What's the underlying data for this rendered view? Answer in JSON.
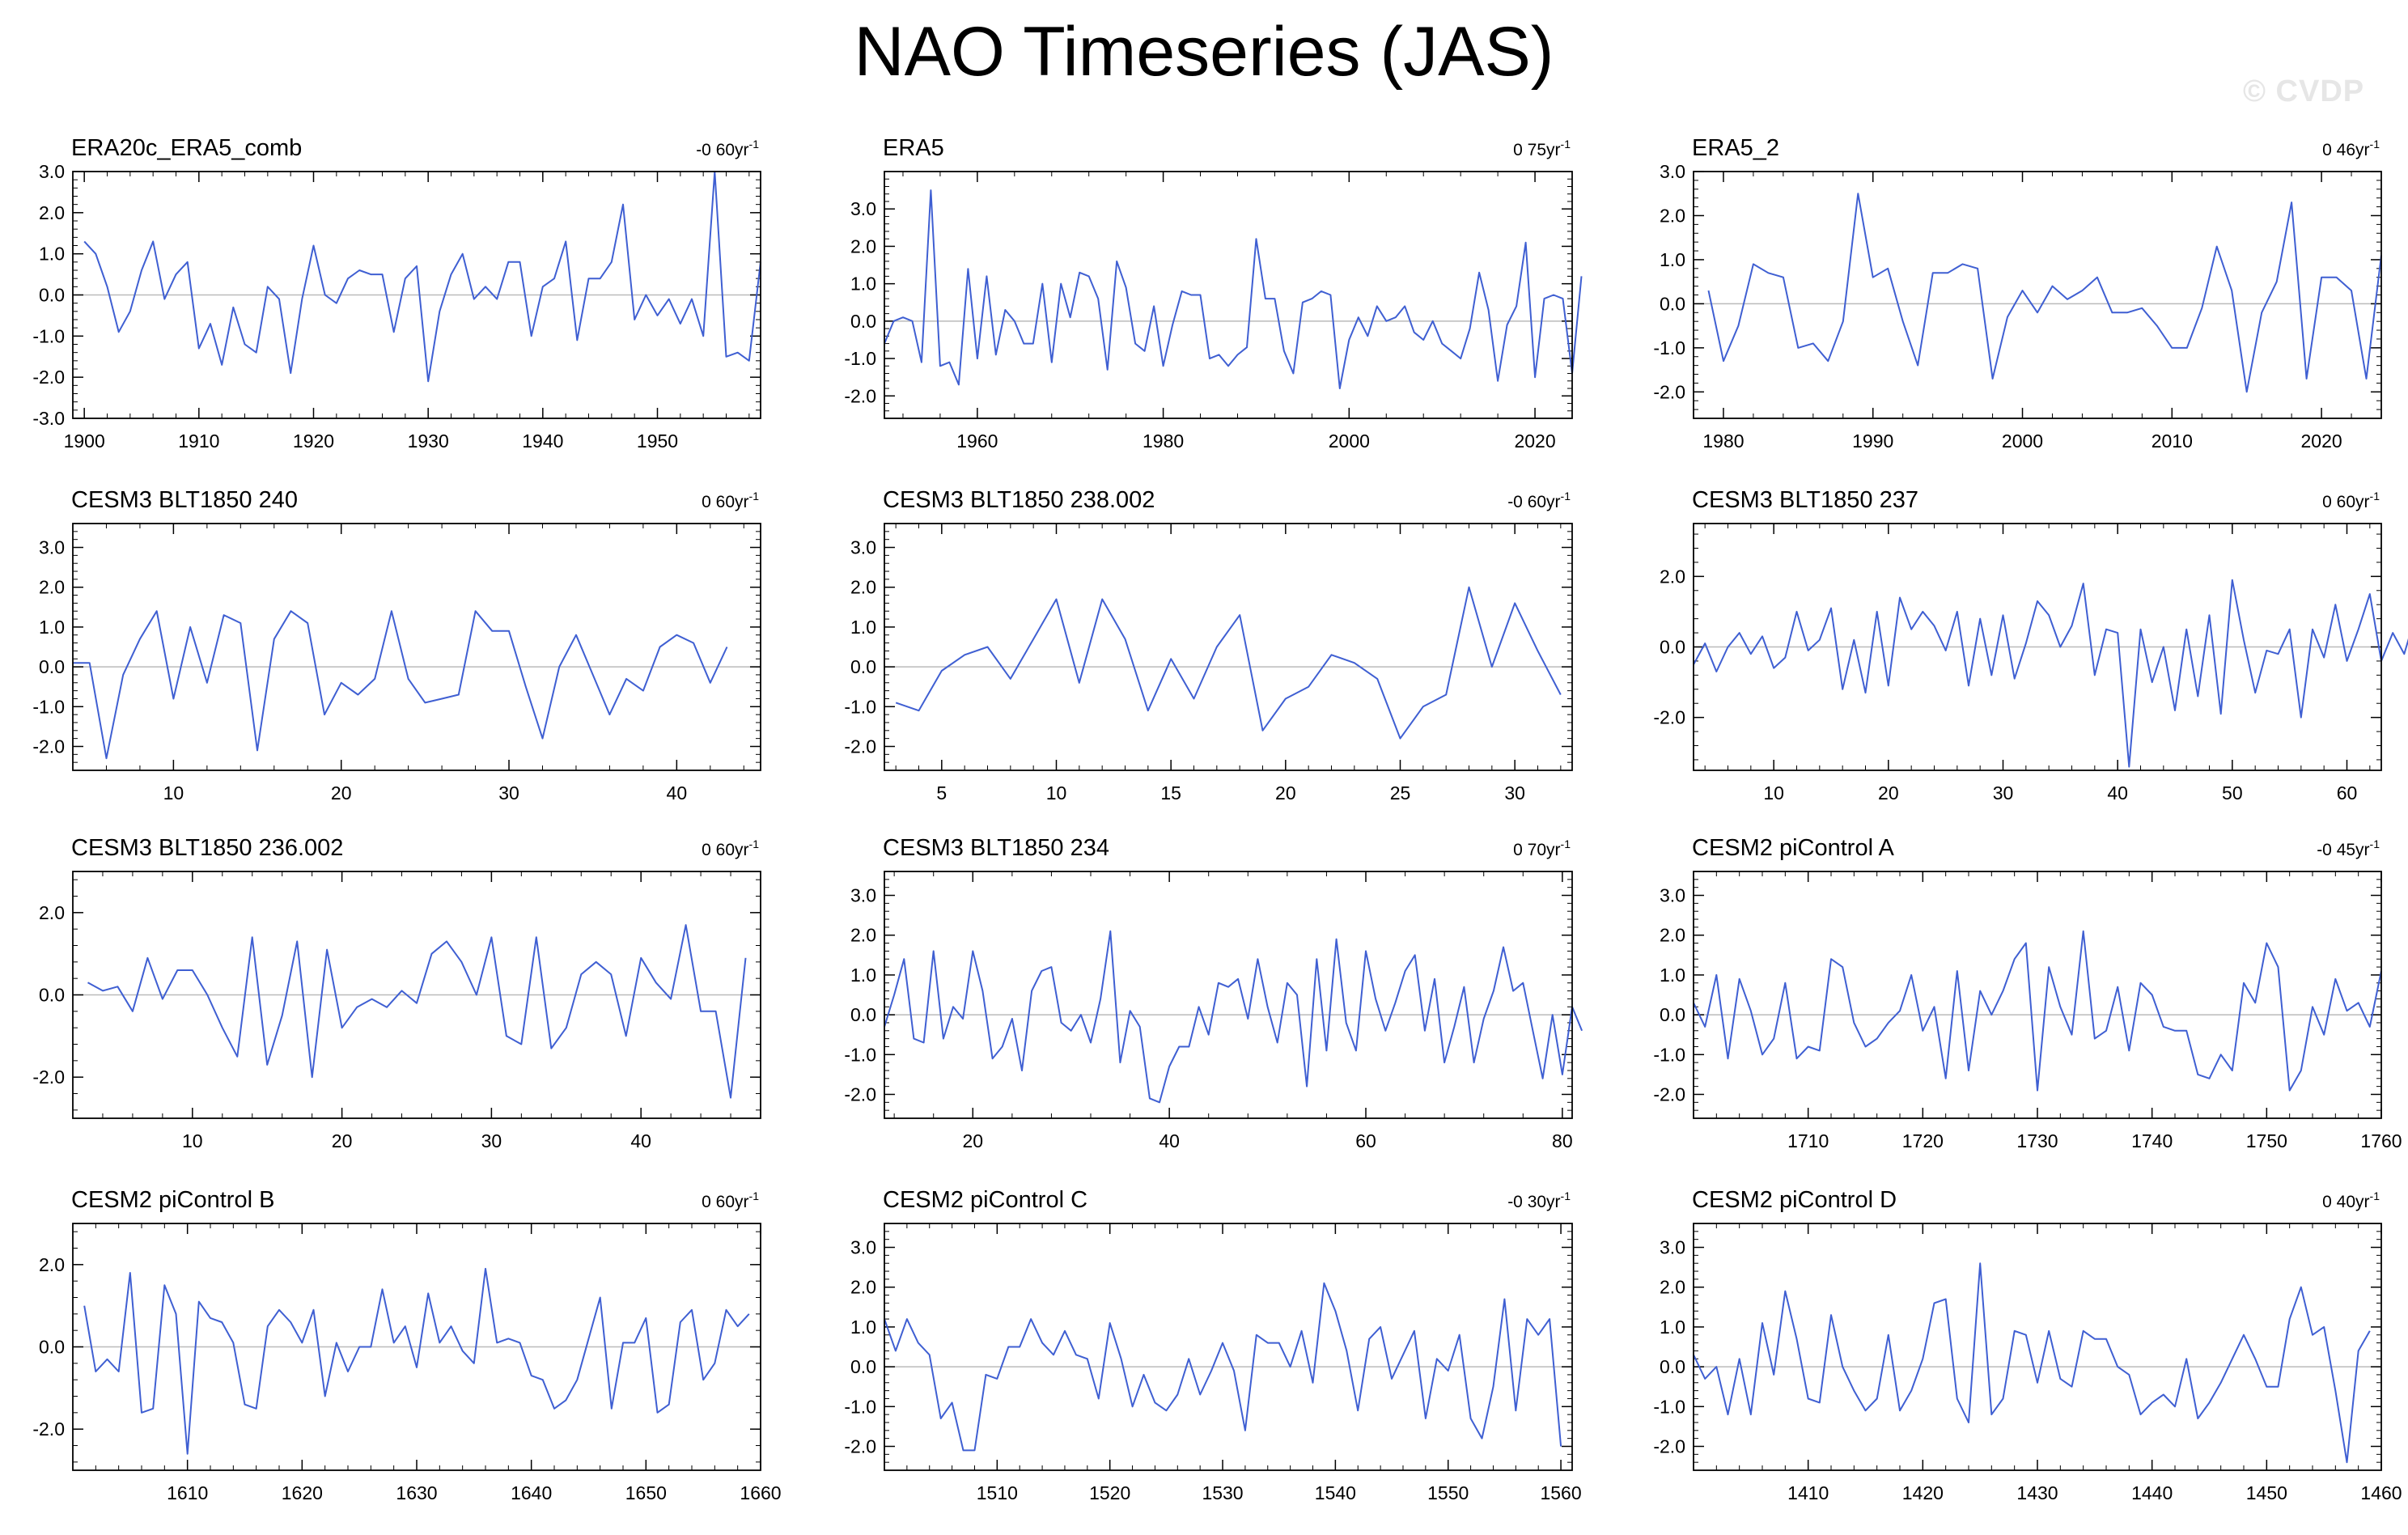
{
  "title": "NAO Timeseries (JAS)",
  "watermark": "© CVDP",
  "colors": {
    "series": "#3f5fd2",
    "zero_line": "#bbbbbb",
    "frame": "#000000"
  },
  "chart_data": [
    {
      "type": "line",
      "title": "ERA20c_ERA5_comb",
      "trend_value": "-0 60",
      "trend_unit": "yr",
      "xlim": [
        1899,
        1959
      ],
      "ylim": [
        -3,
        3
      ],
      "yticks": [
        -3,
        -2,
        -1,
        0,
        1,
        2,
        3
      ],
      "yticklabels": [
        "-3.0",
        "-2.0",
        "-1.0",
        "0.0",
        "1.0",
        "2.0",
        "3.0"
      ],
      "xticks": [
        1900,
        1910,
        1920,
        1930,
        1940,
        1950
      ],
      "xticklabels": [
        "1900",
        "1910",
        "1920",
        "1930",
        "1940",
        "1950"
      ],
      "x_start": 1900,
      "x_step": 1,
      "values": [
        1.3,
        1.0,
        0.2,
        -0.9,
        -0.4,
        0.6,
        1.3,
        -0.1,
        0.5,
        0.8,
        -1.3,
        -0.7,
        -1.7,
        -0.3,
        -1.2,
        -1.4,
        0.2,
        -0.1,
        -1.9,
        -0.1,
        1.2,
        0.0,
        -0.2,
        0.4,
        0.6,
        0.5,
        0.5,
        -0.9,
        0.4,
        0.7,
        -2.1,
        -0.4,
        0.5,
        1.0,
        -0.1,
        0.2,
        -0.1,
        0.8,
        0.8,
        -1.0,
        0.2,
        0.4,
        1.3,
        -1.1,
        0.4,
        0.4,
        0.8,
        2.2,
        -0.6,
        0.0,
        -0.5,
        -0.1,
        -0.7,
        -0.1,
        -1.0,
        3.0,
        -1.5,
        -1.4,
        -1.6,
        0.8
      ]
    },
    {
      "type": "line",
      "title": "ERA5",
      "trend_value": "0 75",
      "trend_unit": "yr",
      "xlim": [
        1950,
        2024
      ],
      "ylim": [
        -2.6,
        4.0
      ],
      "yticks": [
        -2,
        -1,
        0,
        1,
        2,
        3
      ],
      "yticklabels": [
        "-2.0",
        "-1.0",
        "0.0",
        "1.0",
        "2.0",
        "3.0"
      ],
      "xticks": [
        1960,
        1980,
        2000,
        2020
      ],
      "xticklabels": [
        "1960",
        "1980",
        "2000",
        "2020"
      ],
      "x_start": 1950,
      "x_step": 1,
      "values": [
        -0.6,
        0.0,
        0.1,
        0.0,
        -1.1,
        3.5,
        -1.2,
        -1.1,
        -1.7,
        1.4,
        -1.0,
        1.2,
        -0.9,
        0.3,
        0.0,
        -0.6,
        -0.6,
        1.0,
        -1.1,
        1.0,
        0.1,
        1.3,
        1.2,
        0.6,
        -1.3,
        1.6,
        0.9,
        -0.6,
        -0.8,
        0.4,
        -1.2,
        -0.1,
        0.8,
        0.7,
        0.7,
        -1.0,
        -0.9,
        -1.2,
        -0.9,
        -0.7,
        2.2,
        0.6,
        0.6,
        -0.8,
        -1.4,
        0.5,
        0.6,
        0.8,
        0.7,
        -1.8,
        -0.5,
        0.1,
        -0.4,
        0.4,
        0.0,
        0.1,
        0.4,
        -0.3,
        -0.5,
        0.0,
        -0.6,
        -0.8,
        -1.0,
        -0.2,
        1.3,
        0.3,
        -1.6,
        -0.1,
        0.4,
        2.1,
        -1.5,
        0.6,
        0.7,
        0.6,
        -1.4,
        1.2
      ]
    },
    {
      "type": "line",
      "title": "ERA5_2",
      "trend_value": "0 46",
      "trend_unit": "yr",
      "xlim": [
        1978,
        2024
      ],
      "ylim": [
        -2.6,
        3.0
      ],
      "yticks": [
        -2,
        -1,
        0,
        1,
        2,
        3
      ],
      "yticklabels": [
        "-2.0",
        "-1.0",
        "0.0",
        "1.0",
        "2.0",
        "3.0"
      ],
      "xticks": [
        1980,
        1990,
        2000,
        2010,
        2020
      ],
      "xticklabels": [
        "1980",
        "1990",
        "2000",
        "2010",
        "2020"
      ],
      "x_start": 1979,
      "x_step": 1,
      "values": [
        0.3,
        -1.3,
        -0.5,
        0.9,
        0.7,
        0.6,
        -1.0,
        -0.9,
        -1.3,
        -0.4,
        2.5,
        0.6,
        0.8,
        -0.4,
        -1.4,
        0.7,
        0.7,
        0.9,
        0.8,
        -1.7,
        -0.3,
        0.3,
        -0.2,
        0.4,
        0.1,
        0.3,
        0.6,
        -0.2,
        -0.2,
        -0.1,
        -0.5,
        -1.0,
        -1.0,
        -0.1,
        1.3,
        0.3,
        -2.0,
        -0.2,
        0.5,
        2.3,
        -1.7,
        0.6,
        0.6,
        0.3,
        -1.7,
        1.1
      ]
    },
    {
      "type": "line",
      "title": "CESM3 BLT1850 240",
      "trend_value": "0 60",
      "trend_unit": "yr",
      "xlim": [
        4,
        45
      ],
      "ylim": [
        -2.6,
        3.6
      ],
      "yticks": [
        -2,
        -1,
        0,
        1,
        2,
        3
      ],
      "yticklabels": [
        "-2.0",
        "-1.0",
        "0.0",
        "1.0",
        "2.0",
        "3.0"
      ],
      "xticks": [
        10,
        20,
        30,
        40
      ],
      "xticklabels": [
        "10",
        "20",
        "30",
        "40"
      ],
      "x_start": 4,
      "x_step": 1,
      "values": [
        0.1,
        0.1,
        -2.3,
        -0.2,
        0.7,
        1.4,
        -0.8,
        1.0,
        -0.4,
        1.3,
        1.1,
        -2.1,
        0.7,
        1.4,
        1.1,
        -1.2,
        -0.4,
        -0.7,
        -0.3,
        1.4,
        -0.3,
        -0.9,
        -0.8,
        -0.7,
        1.4,
        0.9,
        0.9,
        -0.5,
        -1.8,
        0.0,
        0.8,
        -0.2,
        -1.2,
        -0.3,
        -0.6,
        0.5,
        0.8,
        0.6,
        -0.4,
        0.5
      ]
    },
    {
      "type": "line",
      "title": "CESM3 BLT1850 238.002",
      "trend_value": "-0 60",
      "trend_unit": "yr",
      "xlim": [
        2.5,
        32.5
      ],
      "ylim": [
        -2.6,
        3.6
      ],
      "yticks": [
        -2,
        -1,
        0,
        1,
        2,
        3
      ],
      "yticklabels": [
        "-2.0",
        "-1.0",
        "0.0",
        "1.0",
        "2.0",
        "3.0"
      ],
      "xticks": [
        5,
        10,
        15,
        20,
        25,
        30
      ],
      "xticklabels": [
        "5",
        "10",
        "15",
        "20",
        "25",
        "30"
      ],
      "x_start": 3,
      "x_step": 1,
      "values": [
        -0.9,
        -1.1,
        -0.1,
        0.3,
        0.5,
        -0.3,
        0.7,
        1.7,
        -0.4,
        1.7,
        0.7,
        -1.1,
        0.2,
        -0.8,
        0.5,
        1.3,
        -1.6,
        -0.8,
        -0.5,
        0.3,
        0.1,
        -0.3,
        -1.8,
        -1.0,
        -0.7,
        2.0,
        0.0,
        1.6,
        0.4,
        -0.7
      ]
    },
    {
      "type": "line",
      "title": "CESM3 BLT1850 237",
      "trend_value": "0 60",
      "trend_unit": "yr",
      "xlim": [
        3,
        63
      ],
      "ylim": [
        -3.5,
        3.5
      ],
      "yticks": [
        -2,
        0,
        2
      ],
      "yticklabels": [
        "-2.0",
        "0.0",
        "2.0"
      ],
      "xticks": [
        10,
        20,
        30,
        40,
        50,
        60
      ],
      "xticklabels": [
        "10",
        "20",
        "30",
        "40",
        "50",
        "60"
      ],
      "x_start": 3,
      "x_step": 1,
      "values": [
        -0.5,
        0.1,
        -0.7,
        0.0,
        0.4,
        -0.2,
        0.3,
        -0.6,
        -0.3,
        1.0,
        -0.1,
        0.2,
        1.1,
        -1.2,
        0.2,
        -1.3,
        1.0,
        -1.1,
        1.4,
        0.5,
        1.0,
        0.6,
        -0.1,
        1.0,
        -1.1,
        0.8,
        -0.8,
        0.9,
        -0.9,
        0.1,
        1.3,
        0.9,
        0.0,
        0.6,
        1.8,
        -0.8,
        0.5,
        0.4,
        -3.4,
        0.5,
        -1.0,
        0.0,
        -1.8,
        0.5,
        -1.4,
        0.9,
        -1.9,
        1.9,
        0.2,
        -1.3,
        -0.1,
        -0.2,
        0.5,
        -2.0,
        0.5,
        -0.3,
        1.2,
        -0.4,
        0.5,
        1.5,
        -0.4,
        0.4,
        -0.2,
        0.9
      ]
    },
    {
      "type": "line",
      "title": "CESM3 BLT1850 236.002",
      "trend_value": "0 60",
      "trend_unit": "yr",
      "xlim": [
        2,
        48
      ],
      "ylim": [
        -3.0,
        3.0
      ],
      "yticks": [
        -2,
        0,
        2
      ],
      "yticklabels": [
        "-2.0",
        "0.0",
        "2.0"
      ],
      "xticks": [
        10,
        20,
        30,
        40
      ],
      "xticklabels": [
        "10",
        "20",
        "30",
        "40"
      ],
      "x_start": 3,
      "x_step": 1,
      "values": [
        0.3,
        0.1,
        0.2,
        -0.4,
        0.9,
        -0.1,
        0.6,
        0.6,
        0.0,
        -0.8,
        -1.5,
        1.4,
        -1.7,
        -0.5,
        1.3,
        -2.0,
        1.1,
        -0.8,
        -0.3,
        -0.1,
        -0.3,
        0.1,
        -0.2,
        1.0,
        1.3,
        0.8,
        0.0,
        1.4,
        -1.0,
        -1.2,
        1.4,
        -1.3,
        -0.8,
        0.5,
        0.8,
        0.5,
        -1.0,
        0.9,
        0.3,
        -0.1,
        1.7,
        -0.4,
        -0.4,
        -2.5,
        0.9
      ]
    },
    {
      "type": "line",
      "title": "CESM3 BLT1850 234",
      "trend_value": "0 70",
      "trend_unit": "yr",
      "xlim": [
        11,
        81
      ],
      "ylim": [
        -2.6,
        3.6
      ],
      "yticks": [
        -2,
        -1,
        0,
        1,
        2,
        3
      ],
      "yticklabels": [
        "-2.0",
        "-1.0",
        "0.0",
        "1.0",
        "2.0",
        "3.0"
      ],
      "xticks": [
        20,
        40,
        60,
        80
      ],
      "xticklabels": [
        "20",
        "40",
        "60",
        "80"
      ],
      "x_start": 11,
      "x_step": 1,
      "values": [
        -0.3,
        0.5,
        1.4,
        -0.6,
        -0.7,
        1.6,
        -0.6,
        0.2,
        -0.1,
        1.6,
        0.6,
        -1.1,
        -0.8,
        -0.1,
        -1.4,
        0.6,
        1.1,
        1.2,
        -0.2,
        -0.4,
        0.0,
        -0.7,
        0.4,
        2.1,
        -1.2,
        0.1,
        -0.3,
        -2.1,
        -2.2,
        -1.3,
        -0.8,
        -0.8,
        0.2,
        -0.5,
        0.8,
        0.7,
        0.9,
        -0.1,
        1.4,
        0.2,
        -0.7,
        0.8,
        0.5,
        -1.8,
        1.4,
        -0.9,
        1.9,
        -0.2,
        -0.9,
        1.6,
        0.4,
        -0.4,
        0.3,
        1.1,
        1.5,
        -0.4,
        0.9,
        -1.2,
        -0.3,
        0.7,
        -1.2,
        -0.1,
        0.6,
        1.7,
        0.6,
        0.8,
        -0.4,
        -1.6,
        0.0,
        -1.5,
        0.2,
        -0.4
      ]
    },
    {
      "type": "line",
      "title": "CESM2 piControl A",
      "trend_value": "-0 45",
      "trend_unit": "yr",
      "xlim": [
        1700,
        1760
      ],
      "ylim": [
        -2.6,
        3.6
      ],
      "yticks": [
        -2,
        -1,
        0,
        1,
        2,
        3
      ],
      "yticklabels": [
        "-2.0",
        "-1.0",
        "0.0",
        "1.0",
        "2.0",
        "3.0"
      ],
      "xticks": [
        1710,
        1720,
        1730,
        1740,
        1750,
        1760
      ],
      "xticklabels": [
        "1710",
        "1720",
        "1730",
        "1740",
        "1750",
        "1760"
      ],
      "x_start": 1700,
      "x_step": 1,
      "values": [
        0.3,
        -0.3,
        1.0,
        -1.1,
        0.9,
        0.1,
        -1.0,
        -0.6,
        0.8,
        -1.1,
        -0.8,
        -0.9,
        1.4,
        1.2,
        -0.2,
        -0.8,
        -0.6,
        -0.2,
        0.1,
        1.0,
        -0.4,
        0.2,
        -1.6,
        1.1,
        -1.4,
        0.6,
        0.0,
        0.6,
        1.4,
        1.8,
        -1.9,
        1.2,
        0.2,
        -0.5,
        2.1,
        -0.6,
        -0.4,
        0.7,
        -0.9,
        0.8,
        0.5,
        -0.3,
        -0.4,
        -0.4,
        -1.5,
        -1.6,
        -1.0,
        -1.4,
        0.8,
        0.3,
        1.8,
        1.2,
        -1.9,
        -1.4,
        0.2,
        -0.5,
        0.9,
        0.1,
        0.3,
        -0.3,
        1.1
      ]
    },
    {
      "type": "line",
      "title": "CESM2 piControl B",
      "trend_value": "0 60",
      "trend_unit": "yr",
      "xlim": [
        1600,
        1660
      ],
      "ylim": [
        -3.0,
        3.0
      ],
      "yticks": [
        -2,
        0,
        2
      ],
      "yticklabels": [
        "-2.0",
        "0.0",
        "2.0"
      ],
      "xticks": [
        1610,
        1620,
        1630,
        1640,
        1650,
        1660
      ],
      "xticklabels": [
        "1610",
        "1620",
        "1630",
        "1640",
        "1650",
        "1660"
      ],
      "x_start": 1601,
      "x_step": 1,
      "values": [
        1.0,
        -0.6,
        -0.3,
        -0.6,
        1.8,
        -1.6,
        -1.5,
        1.5,
        0.8,
        -2.6,
        1.1,
        0.7,
        0.6,
        0.1,
        -1.4,
        -1.5,
        0.5,
        0.9,
        0.6,
        0.1,
        0.9,
        -1.2,
        0.1,
        -0.6,
        0.0,
        0.0,
        1.4,
        0.1,
        0.5,
        -0.5,
        1.3,
        0.1,
        0.5,
        -0.1,
        -0.4,
        1.9,
        0.1,
        0.2,
        0.1,
        -0.7,
        -0.8,
        -1.5,
        -1.3,
        -0.8,
        0.2,
        1.2,
        -1.5,
        0.1,
        0.1,
        0.7,
        -1.6,
        -1.4,
        0.6,
        0.9,
        -0.8,
        -0.4,
        0.9,
        0.5,
        0.8
      ]
    },
    {
      "type": "line",
      "title": "CESM2 piControl C",
      "trend_value": "-0 30",
      "trend_unit": "yr",
      "xlim": [
        1500,
        1561
      ],
      "ylim": [
        -2.6,
        3.6
      ],
      "yticks": [
        -2,
        -1,
        0,
        1,
        2,
        3
      ],
      "yticklabels": [
        "-2.0",
        "-1.0",
        "0.0",
        "1.0",
        "2.0",
        "3.0"
      ],
      "xticks": [
        1510,
        1520,
        1530,
        1540,
        1550,
        1560
      ],
      "xticklabels": [
        "1510",
        "1520",
        "1530",
        "1540",
        "1550",
        "1560"
      ],
      "x_start": 1500,
      "x_step": 1,
      "values": [
        1.2,
        0.4,
        1.2,
        0.6,
        0.3,
        -1.3,
        -0.9,
        -2.1,
        -2.1,
        -0.2,
        -0.3,
        0.5,
        0.5,
        1.2,
        0.6,
        0.3,
        0.9,
        0.3,
        0.2,
        -0.8,
        1.1,
        0.2,
        -1.0,
        -0.2,
        -0.9,
        -1.1,
        -0.7,
        0.2,
        -0.7,
        -0.1,
        0.6,
        -0.1,
        -1.6,
        0.8,
        0.6,
        0.6,
        0.0,
        0.9,
        -0.4,
        2.1,
        1.4,
        0.4,
        -1.1,
        0.7,
        1.0,
        -0.3,
        0.3,
        0.9,
        -1.3,
        0.2,
        -0.1,
        0.8,
        -1.3,
        -1.8,
        -0.5,
        1.7,
        -1.1,
        1.2,
        0.8,
        1.2,
        -2.0
      ]
    },
    {
      "type": "line",
      "title": "CESM2 piControl D",
      "trend_value": "0 40",
      "trend_unit": "yr",
      "xlim": [
        1400,
        1460
      ],
      "ylim": [
        -2.6,
        3.6
      ],
      "yticks": [
        -2,
        -1,
        0,
        1,
        2,
        3
      ],
      "yticklabels": [
        "-2.0",
        "-1.0",
        "0.0",
        "1.0",
        "2.0",
        "3.0"
      ],
      "xticks": [
        1410,
        1420,
        1430,
        1440,
        1450,
        1460
      ],
      "xticklabels": [
        "1410",
        "1420",
        "1430",
        "1440",
        "1450",
        "1460"
      ],
      "x_start": 1400,
      "x_step": 1,
      "values": [
        0.3,
        -0.3,
        0.0,
        -1.2,
        0.2,
        -1.2,
        1.1,
        -0.2,
        1.9,
        0.7,
        -0.8,
        -0.9,
        1.3,
        0.0,
        -0.6,
        -1.1,
        -0.8,
        0.8,
        -1.1,
        -0.6,
        0.2,
        1.6,
        1.7,
        -0.8,
        -1.4,
        2.6,
        -1.2,
        -0.8,
        0.9,
        0.8,
        -0.4,
        0.9,
        -0.3,
        -0.5,
        0.9,
        0.7,
        0.7,
        0.0,
        -0.2,
        -1.2,
        -0.9,
        -0.7,
        -1.0,
        0.2,
        -1.3,
        -0.9,
        -0.4,
        0.2,
        0.8,
        0.2,
        -0.5,
        -0.5,
        1.2,
        2.0,
        0.8,
        1.0,
        -0.6,
        -2.4,
        0.4,
        0.9
      ]
    }
  ]
}
